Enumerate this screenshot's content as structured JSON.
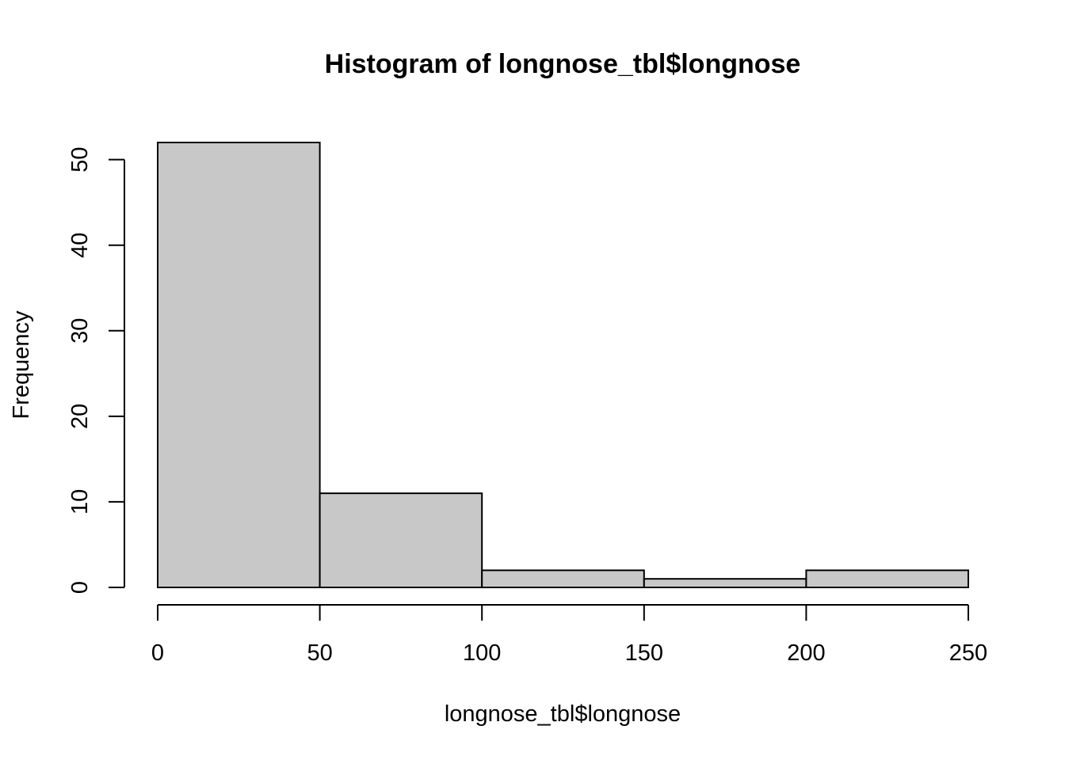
{
  "chart_data": {
    "type": "bar",
    "title": "Histogram of longnose_tbl$longnose",
    "xlabel": "longnose_tbl$longnose",
    "ylabel": "Frequency",
    "bins": [
      {
        "start": 0,
        "end": 50,
        "count": 52
      },
      {
        "start": 50,
        "end": 100,
        "count": 11
      },
      {
        "start": 100,
        "end": 150,
        "count": 2
      },
      {
        "start": 150,
        "end": 200,
        "count": 1
      },
      {
        "start": 200,
        "end": 250,
        "count": 2
      }
    ],
    "xlim": [
      0,
      250
    ],
    "ylim": [
      0,
      52
    ],
    "x_ticks": [
      0,
      50,
      100,
      150,
      200,
      250
    ],
    "y_ticks": [
      0,
      10,
      20,
      30,
      40,
      50
    ],
    "grid": false,
    "colors": {
      "bar_fill": "#c8c8c8",
      "bar_stroke": "#000000"
    }
  }
}
